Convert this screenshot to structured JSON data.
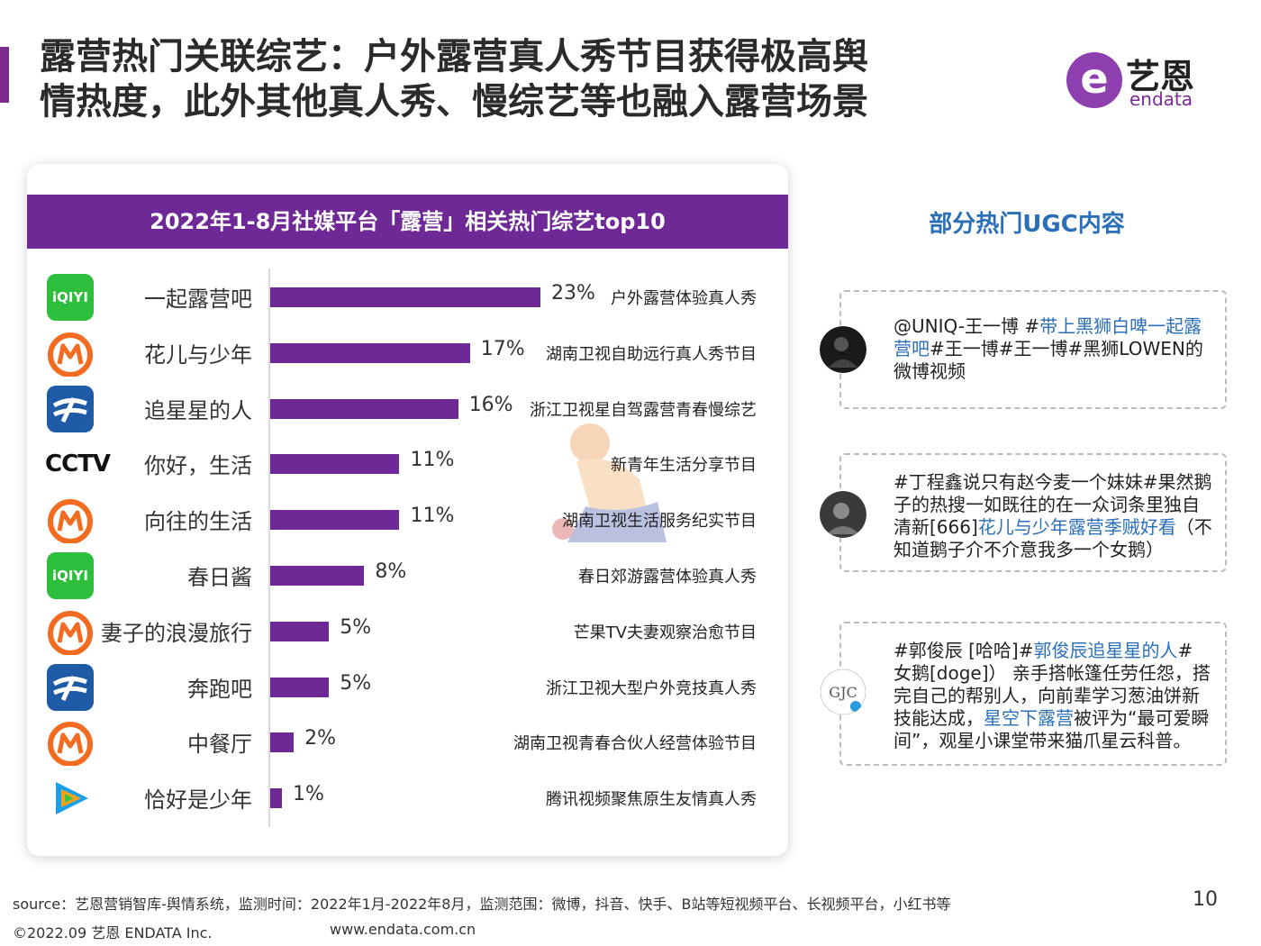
{
  "title": {
    "line1": "露营热门关联综艺：户外露营真人秀节目获得极高舆",
    "line2": "情热度，此外其他真人秀、慢综艺等也融入露营场景"
  },
  "logo": {
    "cn": "艺恩",
    "en": "endata",
    "mark": "e"
  },
  "chart_data": {
    "type": "bar",
    "title": "2022年1-8月社媒平台「露营」相关热门综艺top10",
    "categories": [
      "一起露营吧",
      "花儿与少年",
      "追星星的人",
      "你好，生活",
      "向往的生活",
      "春日酱",
      "妻子的浪漫旅行",
      "奔跑吧",
      "中餐厅",
      "恰好是少年"
    ],
    "values": [
      23,
      17,
      16,
      11,
      11,
      8,
      5,
      5,
      2,
      1
    ],
    "value_labels": [
      "23%",
      "17%",
      "16%",
      "11%",
      "11%",
      "8%",
      "5%",
      "5%",
      "2%",
      "1%"
    ],
    "descriptions": [
      "户外露营体验真人秀",
      "湖南卫视自助远行真人秀节目",
      "浙江卫视星自驾露营青春慢综艺",
      "新青年生活分享节目",
      "湖南卫视生活服务纪实节目",
      "春日郊游露营体验真人秀",
      "芒果TV夫妻观察治愈节目",
      "浙江卫视大型户外竞技真人秀",
      "湖南卫视青春合伙人经营体验节目",
      "腾讯视频聚焦原生友情真人秀"
    ],
    "platform_icons": [
      "iqiyi-icon",
      "mango-tv-icon",
      "zhejiang-tv-icon",
      "cctv-icon",
      "mango-tv-icon",
      "iqiyi-icon",
      "mango-tv-icon",
      "zhejiang-tv-icon",
      "mango-tv-icon",
      "tencent-video-icon"
    ],
    "xlim": [
      0,
      23
    ],
    "bar_color": "#6f2996"
  },
  "icons": {
    "iqiyi_text": "iQIYI",
    "cctv_text": "CCTV"
  },
  "ugc": {
    "title": "部分热门UGC内容",
    "posts": [
      {
        "segments": [
          {
            "text": "@UNIQ-王一博 #",
            "hl": false
          },
          {
            "text": "带上黑狮白啤一起露营吧",
            "hl": true
          },
          {
            "text": "#王一博#王一博#黑狮LOWEN的微博视频",
            "hl": false
          }
        ]
      },
      {
        "segments": [
          {
            "text": "#丁程鑫说只有赵今麦一个妹妹#果然鹅子的热搜一如既往的在一众词条里独自清新[666]",
            "hl": false
          },
          {
            "text": "花儿与少年露营季贼好看",
            "hl": true
          },
          {
            "text": "（不知道鹅子介不介意我多一个女鹅）",
            "hl": false
          }
        ]
      },
      {
        "segments": [
          {
            "text": "#郭俊辰 [哈哈]#",
            "hl": false
          },
          {
            "text": "郭俊辰追星星的人",
            "hl": true
          },
          {
            "text": "# 女鹅[doge]） 亲手搭帐篷任劳任怨，搭完自己的帮别人，向前辈学习葱油饼新技能达成，",
            "hl": false
          },
          {
            "text": "星空下露营",
            "hl": true
          },
          {
            "text": "被评为“最可爱瞬间”，观星小课堂带来猫爪星云科普。",
            "hl": false
          }
        ]
      }
    ]
  },
  "footer": {
    "source": "source：艺恩营销智库-舆情系统，监测时间：2022年1月-2022年8月，监测范围：微博，抖音、快手、B站等短视频平台、长视频平台，小红书等",
    "page": "10",
    "copyright": "©2022.09 艺恩 ENDATA Inc.",
    "website": "www.endata.com.cn"
  }
}
